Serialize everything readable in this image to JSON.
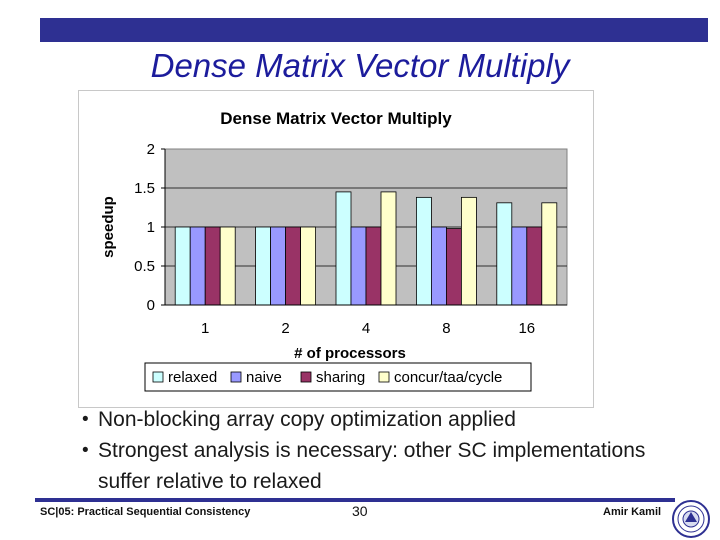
{
  "slide": {
    "title": "Dense Matrix Vector Multiply",
    "bullets": [
      "Non-blocking array copy optimization applied",
      "Strongest analysis is necessary: other SC implementations suffer relative to relaxed"
    ],
    "footer_left": "SC|05: Practical Sequential Consistency",
    "footer_page": "30",
    "footer_right": "Amir Kamil"
  },
  "chart_data": {
    "type": "bar",
    "title": "Dense Matrix Vector Multiply",
    "xlabel": "# of processors",
    "ylabel": "speedup",
    "categories": [
      "1",
      "2",
      "4",
      "8",
      "16"
    ],
    "ylim": [
      0,
      2
    ],
    "yticks": [
      "0",
      "0.5",
      "1",
      "1.5",
      "2"
    ],
    "grid": true,
    "legend_position": "bottom",
    "series": [
      {
        "name": "relaxed",
        "color": "#ccffff",
        "values": [
          1,
          1,
          1.45,
          1.38,
          1.31
        ]
      },
      {
        "name": "naive",
        "color": "#9999ff",
        "values": [
          1,
          1,
          1,
          1,
          1
        ]
      },
      {
        "name": "sharing",
        "color": "#993366",
        "values": [
          1,
          1,
          1,
          0.98,
          1
        ]
      },
      {
        "name": "concur/taa/cycle",
        "color": "#ffffcc",
        "values": [
          1,
          1,
          1.45,
          1.38,
          1.31
        ]
      }
    ]
  }
}
